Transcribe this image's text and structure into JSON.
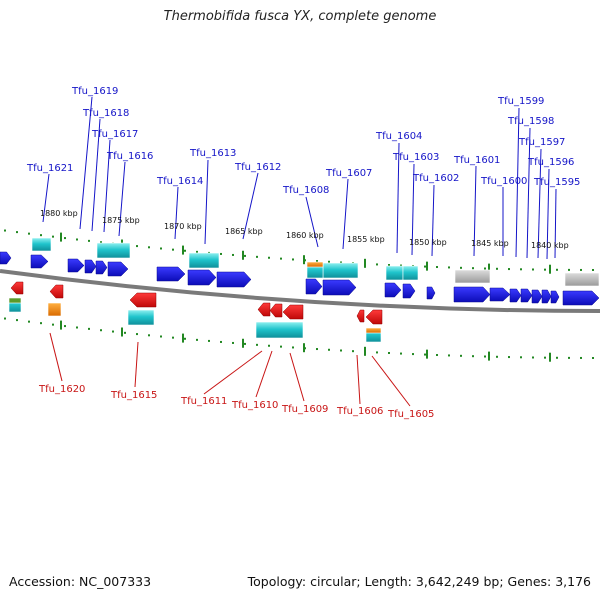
{
  "title": "Thermobifida fusca YX, complete genome",
  "footer": {
    "accession": "Accession: NC_007333",
    "summary": "Topology: circular; Length: 3,642,249 bp; Genes: 3,176"
  },
  "colors": {
    "forward_label": "#1515c8",
    "reverse_label": "#c81515",
    "forward_gene": "#1a1ae6",
    "reverse_gene": "#ee1010",
    "cds": "#22c0c8",
    "rna": "#f08a10",
    "pseudo": "#b8b8b8",
    "backbone": "#777777",
    "tick": "#228822"
  },
  "scale_ticks": [
    "1880 kbp",
    "1875 kbp",
    "1870 kbp",
    "1865 kbp",
    "1860 kbp",
    "1855 kbp",
    "1850 kbp",
    "1845 kbp",
    "1840 kbp"
  ],
  "forward_genes": [
    "Tfu_1621",
    "Tfu_1619",
    "Tfu_1618",
    "Tfu_1617",
    "Tfu_1616",
    "Tfu_1614",
    "Tfu_1613",
    "Tfu_1612",
    "Tfu_1608",
    "Tfu_1607",
    "Tfu_1604",
    "Tfu_1603",
    "Tfu_1602",
    "Tfu_1601",
    "Tfu_1600",
    "Tfu_1599",
    "Tfu_1598",
    "Tfu_1597",
    "Tfu_1596",
    "Tfu_1595"
  ],
  "reverse_genes": [
    "Tfu_1620",
    "Tfu_1615",
    "Tfu_1611",
    "Tfu_1610",
    "Tfu_1609",
    "Tfu_1606",
    "Tfu_1605"
  ]
}
